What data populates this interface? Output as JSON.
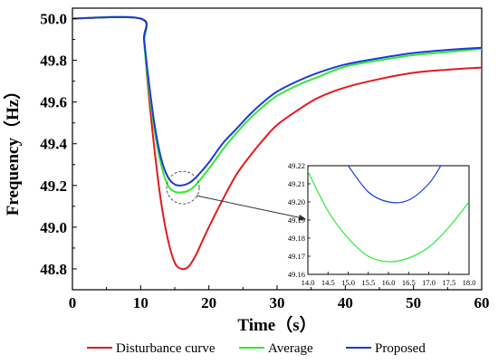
{
  "chart_data": {
    "type": "line",
    "xlabel": "Time（s）",
    "ylabel": "Frequency（Hz）",
    "xlim": [
      0,
      60
    ],
    "ylim": [
      48.7,
      50.05
    ],
    "x_ticks": [
      "0",
      "10",
      "20",
      "30",
      "40",
      "50",
      "60"
    ],
    "y_ticks": [
      "48.8",
      "49.0",
      "49.2",
      "49.4",
      "49.6",
      "49.8",
      "50.0"
    ],
    "grid": false,
    "legend_position": "bottom",
    "series": [
      {
        "name": "Disturbance curve",
        "color": "#e31a1c",
        "x": [
          0,
          10,
          10.5,
          11,
          12,
          13,
          14,
          15,
          16,
          17,
          18,
          19,
          20,
          22,
          24,
          26,
          28,
          30,
          33,
          36,
          40,
          45,
          50,
          55,
          60
        ],
        "y": [
          50.0,
          50.0,
          49.9,
          49.7,
          49.38,
          49.12,
          48.94,
          48.83,
          48.8,
          48.81,
          48.86,
          48.93,
          49.0,
          49.13,
          49.25,
          49.34,
          49.42,
          49.49,
          49.56,
          49.62,
          49.67,
          49.71,
          49.74,
          49.755,
          49.765
        ]
      },
      {
        "name": "Average",
        "color": "#33e833",
        "x": [
          0,
          10,
          10.5,
          11,
          12,
          13,
          14,
          15,
          16,
          17,
          18,
          20,
          22,
          24,
          26,
          28,
          30,
          33,
          36,
          40,
          45,
          50,
          55,
          60
        ],
        "y": [
          50.0,
          50.0,
          49.88,
          49.72,
          49.47,
          49.3,
          49.2,
          49.17,
          49.167,
          49.175,
          49.2,
          49.28,
          49.37,
          49.45,
          49.52,
          49.58,
          49.63,
          49.68,
          49.72,
          49.77,
          49.8,
          49.825,
          49.84,
          49.855
        ]
      },
      {
        "name": "Proposed",
        "color": "#1a3bd6",
        "x": [
          0,
          10,
          10.5,
          11,
          12,
          13,
          14,
          15,
          16,
          17,
          18,
          20,
          22,
          24,
          26,
          28,
          30,
          33,
          36,
          40,
          45,
          50,
          55,
          60
        ],
        "y": [
          50.0,
          50.0,
          49.9,
          49.75,
          49.5,
          49.33,
          49.24,
          49.205,
          49.2,
          49.21,
          49.235,
          49.31,
          49.4,
          49.47,
          49.54,
          49.6,
          49.65,
          49.7,
          49.74,
          49.78,
          49.81,
          49.835,
          49.85,
          49.86
        ]
      }
    ],
    "inset": {
      "xlim": [
        14.0,
        18.0
      ],
      "ylim": [
        49.16,
        49.22
      ],
      "x_ticks": [
        "14.0",
        "14.5",
        "15.0",
        "15.5",
        "16.0",
        "16.5",
        "17.0",
        "17.5",
        "18.0"
      ],
      "y_ticks": [
        "49.16",
        "49.17",
        "49.18",
        "49.19",
        "49.20",
        "49.21",
        "49.22"
      ],
      "series": [
        {
          "name": "Average",
          "color": "#33e833",
          "x": [
            14.0,
            14.5,
            15.0,
            15.5,
            16.0,
            16.5,
            17.0,
            17.5,
            18.0
          ],
          "y": [
            49.217,
            49.195,
            49.18,
            49.17,
            49.167,
            49.169,
            49.175,
            49.186,
            49.2
          ]
        },
        {
          "name": "Proposed",
          "color": "#1a3bd6",
          "x": [
            15.0,
            15.5,
            16.0,
            16.5,
            17.0,
            17.3
          ],
          "y": [
            49.22,
            49.2055,
            49.2,
            49.201,
            49.21,
            49.22
          ]
        }
      ]
    }
  }
}
